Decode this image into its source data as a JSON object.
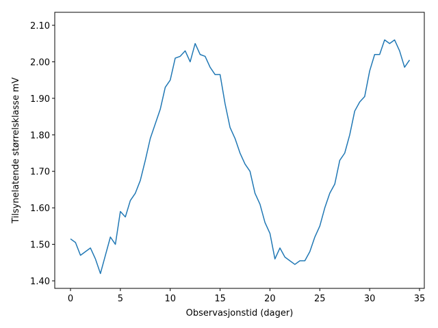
{
  "chart_data": {
    "type": "line",
    "xlabel": "Observasjonstid (dager)",
    "ylabel": "Tilsynelatende størrelsklasse mV",
    "x": [
      0,
      0.5,
      1,
      1.5,
      2,
      2.5,
      3,
      3.5,
      4,
      4.5,
      5,
      5.5,
      6,
      6.5,
      7,
      7.5,
      8,
      8.5,
      9,
      9.5,
      10,
      10.5,
      11,
      11.5,
      12,
      12.5,
      13,
      13.5,
      14,
      14.5,
      15,
      15.5,
      16,
      16.5,
      17,
      17.5,
      18,
      18.5,
      19,
      19.5,
      20,
      20.5,
      21,
      21.5,
      22,
      22.5,
      23,
      23.5,
      24,
      24.5,
      25,
      25.5,
      26,
      26.5,
      27,
      27.5,
      28,
      28.5,
      29,
      29.5,
      30,
      30.5,
      31,
      31.5,
      32,
      32.5,
      33,
      33.5,
      34
    ],
    "series": [
      {
        "color": "#1f77b4",
        "values": [
          1.515,
          1.505,
          1.47,
          1.48,
          1.49,
          1.46,
          1.42,
          1.47,
          1.52,
          1.5,
          1.59,
          1.575,
          1.62,
          1.64,
          1.675,
          1.73,
          1.79,
          1.83,
          1.87,
          1.93,
          1.95,
          2.01,
          2.015,
          2.03,
          2.0,
          2.05,
          2.02,
          2.015,
          1.985,
          1.965,
          1.965,
          1.885,
          1.82,
          1.79,
          1.75,
          1.72,
          1.7,
          1.64,
          1.61,
          1.56,
          1.53,
          1.46,
          1.49,
          1.465,
          1.455,
          1.445,
          1.455,
          1.455,
          1.48,
          1.52,
          1.55,
          1.6,
          1.64,
          1.665,
          1.73,
          1.75,
          1.8,
          1.865,
          1.89,
          1.905,
          1.975,
          2.02,
          2.02,
          2.06,
          2.05,
          2.06,
          2.03,
          1.985,
          2.005
        ]
      }
    ],
    "xlim": [
      -1.58,
      35.48
    ],
    "ylim": [
      1.3794,
      2.1356
    ],
    "xticks": [
      0,
      5,
      10,
      15,
      20,
      25,
      30,
      35
    ],
    "yticks": [
      {
        "value": 1.4,
        "label": "1.40"
      },
      {
        "value": 1.5,
        "label": "1.50"
      },
      {
        "value": 1.6,
        "label": "1.60"
      },
      {
        "value": 1.7,
        "label": "1.70"
      },
      {
        "value": 1.8,
        "label": "1.80"
      },
      {
        "value": 1.9,
        "label": "1.90"
      },
      {
        "value": 2.0,
        "label": "2.00"
      },
      {
        "value": 2.1,
        "label": "2.10"
      }
    ]
  }
}
